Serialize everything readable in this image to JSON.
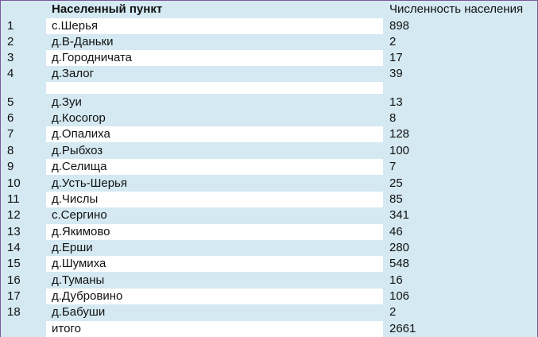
{
  "table": {
    "header": {
      "num": "",
      "name": "Населенный пункт",
      "population": "Численность населения"
    },
    "rows": [
      {
        "num": "1",
        "name": "с.Шерья",
        "population": "898"
      },
      {
        "num": "2",
        "name": "д.В-Даньки",
        "population": "2"
      },
      {
        "num": "3",
        "name": "д.Городничата",
        "population": "17"
      },
      {
        "num": "4",
        "name": "д.Залог",
        "population": "39"
      },
      {
        "num": "5",
        "name": "д.Зуи",
        "population": "13"
      },
      {
        "num": "6",
        "name": "д.Косогор",
        "population": "8"
      },
      {
        "num": "7",
        "name": "д.Опалиха",
        "population": "128"
      },
      {
        "num": "8",
        "name": "д.Рыбхоз",
        "population": "100"
      },
      {
        "num": "9",
        "name": "д.Селища",
        "population": "7"
      },
      {
        "num": "10",
        "name": "д.Усть-Шерья",
        "population": "25"
      },
      {
        "num": "11",
        "name": "д.Числы",
        "population": "85"
      },
      {
        "num": "12",
        "name": "с.Сергино",
        "population": "341"
      },
      {
        "num": "13",
        "name": "д.Якимово",
        "population": "46"
      },
      {
        "num": "14",
        "name": "д.Ерши",
        "population": "280"
      },
      {
        "num": "15",
        "name": "д.Шумиха",
        "population": "548"
      },
      {
        "num": "16",
        "name": "д.Туманы",
        "population": "16"
      },
      {
        "num": "17",
        "name": "д.Дубровино",
        "population": "106"
      },
      {
        "num": "18",
        "name": "д.Бабуши",
        "population": "2"
      }
    ],
    "total": {
      "num": "",
      "name": "итого",
      "population": "2661"
    }
  }
}
